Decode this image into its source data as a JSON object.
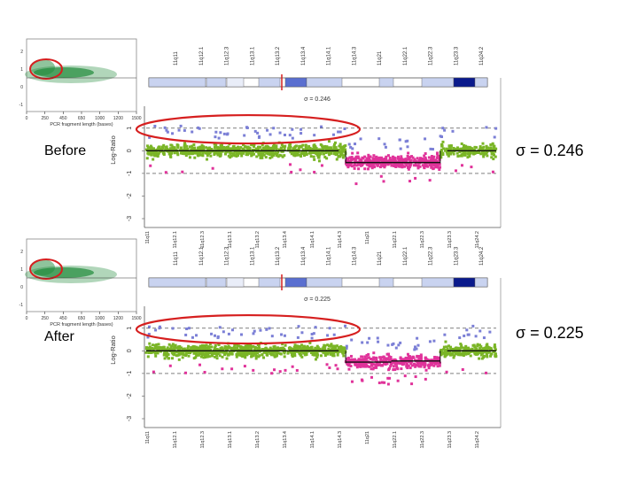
{
  "colors": {
    "normal_points": "#7ab526",
    "loss_points": "#e0339a",
    "outlier_points": "#7b7fd6",
    "highlight_ring": "#d61f1f",
    "segment_line": "#111111",
    "inset_density": "#1f8a3a",
    "ideogram_light": "#c9d3f0",
    "ideogram_dark": "#0a1a8c"
  },
  "bands": [
    "11q11",
    "11q12.1",
    "11q12.3",
    "11q13.1",
    "11q13.2",
    "11q13.4",
    "11q14.1",
    "11q14.3",
    "11q21",
    "11q22.1",
    "11q22.3",
    "11q23.3",
    "11q24.2"
  ],
  "inset": {
    "x_label": "PCR fragment length (bases)",
    "x_ticks": [
      "0",
      "250",
      "450",
      "650",
      "1000",
      "1200",
      "1500"
    ],
    "y_ticks": [
      "-1",
      "0",
      "1",
      "2"
    ]
  },
  "chart_data": [
    {
      "type": "scatter",
      "title": "Before",
      "ylabel": "Log-Ratio",
      "y_ticks": [
        "1",
        "0",
        "-1",
        "-2",
        "-3"
      ],
      "ylim": [
        -3,
        1.5
      ],
      "sigma_label": "σ = 0.246",
      "subtitle": "σ = 0.246",
      "series": [
        {
          "name": "",
          "x": [
            0.0,
            0.55
          ],
          "values": [
            0.0,
            0.0
          ]
        },
        {
          "name": "",
          "x": [
            0.57,
            0.84
          ],
          "values": [
            -0.52,
            -0.52
          ]
        },
        {
          "name": "",
          "x": [
            0.86,
            1.0
          ],
          "values": [
            0.0,
            0.0
          ]
        }
      ]
    },
    {
      "type": "scatter",
      "title": "After",
      "ylabel": "Log-Ratio",
      "y_ticks": [
        "1",
        "0",
        "-1",
        "-2",
        "-3"
      ],
      "ylim": [
        -3,
        1.5
      ],
      "sigma_label": "σ = 0.225",
      "subtitle": "σ = 0.225",
      "series": [
        {
          "name": "",
          "x": [
            0.0,
            0.55
          ],
          "values": [
            0.0,
            0.0
          ]
        },
        {
          "name": "",
          "x": [
            0.57,
            0.7
          ],
          "values": [
            -0.5,
            -0.5
          ]
        },
        {
          "name": "",
          "x": [
            0.7,
            0.84
          ],
          "values": [
            -0.45,
            -0.45
          ]
        },
        {
          "name": "",
          "x": [
            0.86,
            1.0
          ],
          "values": [
            0.0,
            0.0
          ]
        }
      ]
    }
  ]
}
